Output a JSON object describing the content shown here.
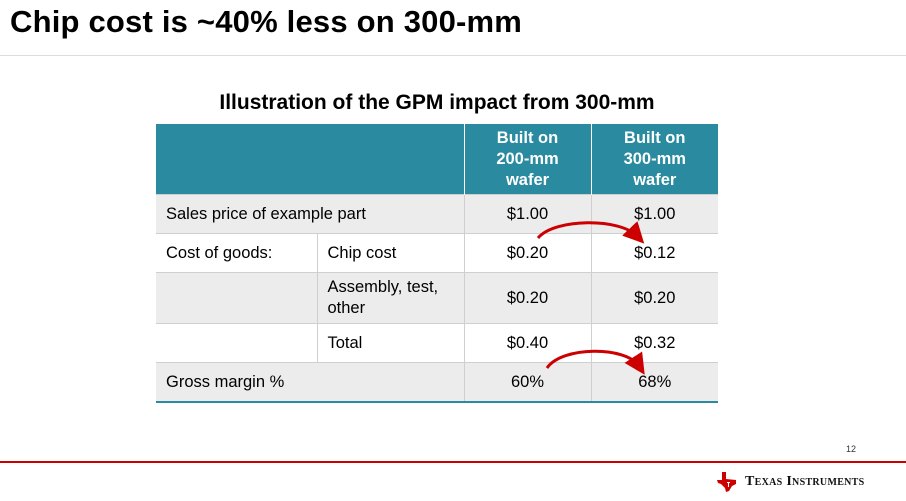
{
  "slide": {
    "title": "Chip cost is ~40% less on 300-mm",
    "page_number": "12"
  },
  "table": {
    "title": "Illustration of the GPM impact from 300-mm",
    "headers": {
      "col_200_line1": "Built on",
      "col_200_line2": "200-mm",
      "col_200_line3": "wafer",
      "col_300_line1": "Built on",
      "col_300_line2": "300-mm",
      "col_300_line3": "wafer"
    },
    "rows": {
      "sales_price": {
        "label": "Sales price of example part",
        "v200": "$1.00",
        "v300": "$1.00"
      },
      "chip_cost": {
        "group": "Cost of goods:",
        "label": "Chip cost",
        "v200": "$0.20",
        "v300": "$0.12"
      },
      "assembly": {
        "label_line1": "Assembly, test,",
        "label_line2": "other",
        "v200": "$0.20",
        "v300": "$0.20"
      },
      "total": {
        "label": "Total",
        "v200": "$0.40",
        "v300": "$0.32"
      },
      "gross_margin": {
        "label": "Gross margin %",
        "v200": "60%",
        "v300": "68%"
      }
    }
  },
  "colors": {
    "header_teal": "#2a8ba0",
    "arrow_red": "#cc0000",
    "row_gray": "#ececec"
  },
  "footer": {
    "logo_text": "Texas Instruments",
    "logo_icon": "texas-state-icon"
  }
}
